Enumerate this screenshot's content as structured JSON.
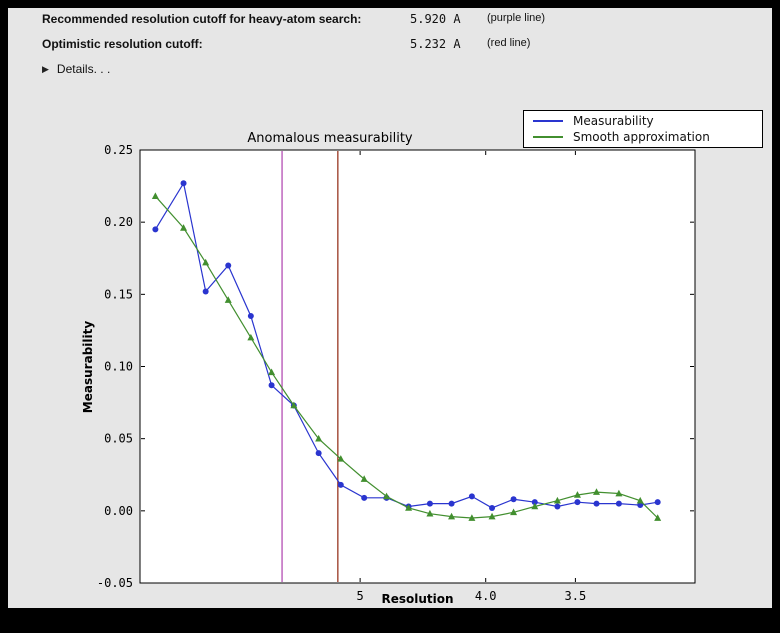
{
  "window": {
    "background": "#000000",
    "panel_color": "#e6e6e6"
  },
  "header": {
    "rows": [
      {
        "label": "Recommended resolution cutoff for heavy-atom search:",
        "value": "5.920 A",
        "note": "(purple line)"
      },
      {
        "label": "Optimistic resolution cutoff:",
        "value": "5.232 A",
        "note": "(red line)"
      }
    ],
    "details": {
      "icon": "▶",
      "label": "Details. . ."
    }
  },
  "chart_data": {
    "type": "line",
    "title": "Anomalous measurability",
    "xlabel": "Resolution",
    "ylabel": "Measurability",
    "ylim": [
      -0.05,
      0.25
    ],
    "grid": false,
    "legend_position": "upper right",
    "x_axis": {
      "scale": "inverse-resolution",
      "d_range": [
        8.9,
        3.0
      ],
      "ticks": [
        {
          "value": 5.0,
          "label": "5"
        },
        {
          "value": 4.0,
          "label": "4.0"
        },
        {
          "value": 3.5,
          "label": "3.5"
        }
      ]
    },
    "yticks": [
      {
        "value": 0.25,
        "label": "0.25"
      },
      {
        "value": 0.2,
        "label": "0.20"
      },
      {
        "value": 0.15,
        "label": "0.15"
      },
      {
        "value": 0.1,
        "label": "0.10"
      },
      {
        "value": 0.05,
        "label": "0.05"
      },
      {
        "value": 0.0,
        "label": "0.00"
      },
      {
        "value": -0.05,
        "label": "-0.05"
      }
    ],
    "resolution_bins_d": [
      8.44,
      7.71,
      7.22,
      6.78,
      6.39,
      6.07,
      5.76,
      5.45,
      5.2,
      4.96,
      4.75,
      4.56,
      4.39,
      4.23,
      4.09,
      3.96,
      3.83,
      3.71,
      3.59,
      3.49,
      3.4,
      3.3,
      3.21,
      3.14
    ],
    "series": [
      {
        "name": "Measurability",
        "color": "#2a35cf",
        "marker": "circle",
        "values": [
          0.195,
          0.227,
          0.152,
          0.17,
          0.135,
          0.087,
          0.073,
          0.04,
          0.018,
          0.009,
          0.009,
          0.003,
          0.005,
          0.005,
          0.01,
          0.002,
          0.008,
          0.006,
          0.003,
          0.006,
          0.005,
          0.005,
          0.004,
          0.006
        ]
      },
      {
        "name": "Smooth approximation",
        "color": "#428f2f",
        "marker": "triangle",
        "values": [
          0.218,
          0.196,
          0.172,
          0.146,
          0.12,
          0.096,
          0.073,
          0.05,
          0.036,
          0.022,
          0.01,
          0.002,
          -0.002,
          -0.004,
          -0.005,
          -0.004,
          -0.001,
          0.003,
          0.007,
          0.011,
          0.013,
          0.012,
          0.007,
          -0.005
        ]
      }
    ],
    "vlines": [
      {
        "name": "recommended-cutoff",
        "d": 5.92,
        "color": "#b44fb4"
      },
      {
        "name": "optimistic-cutoff",
        "d": 5.232,
        "color": "#993622"
      }
    ]
  }
}
